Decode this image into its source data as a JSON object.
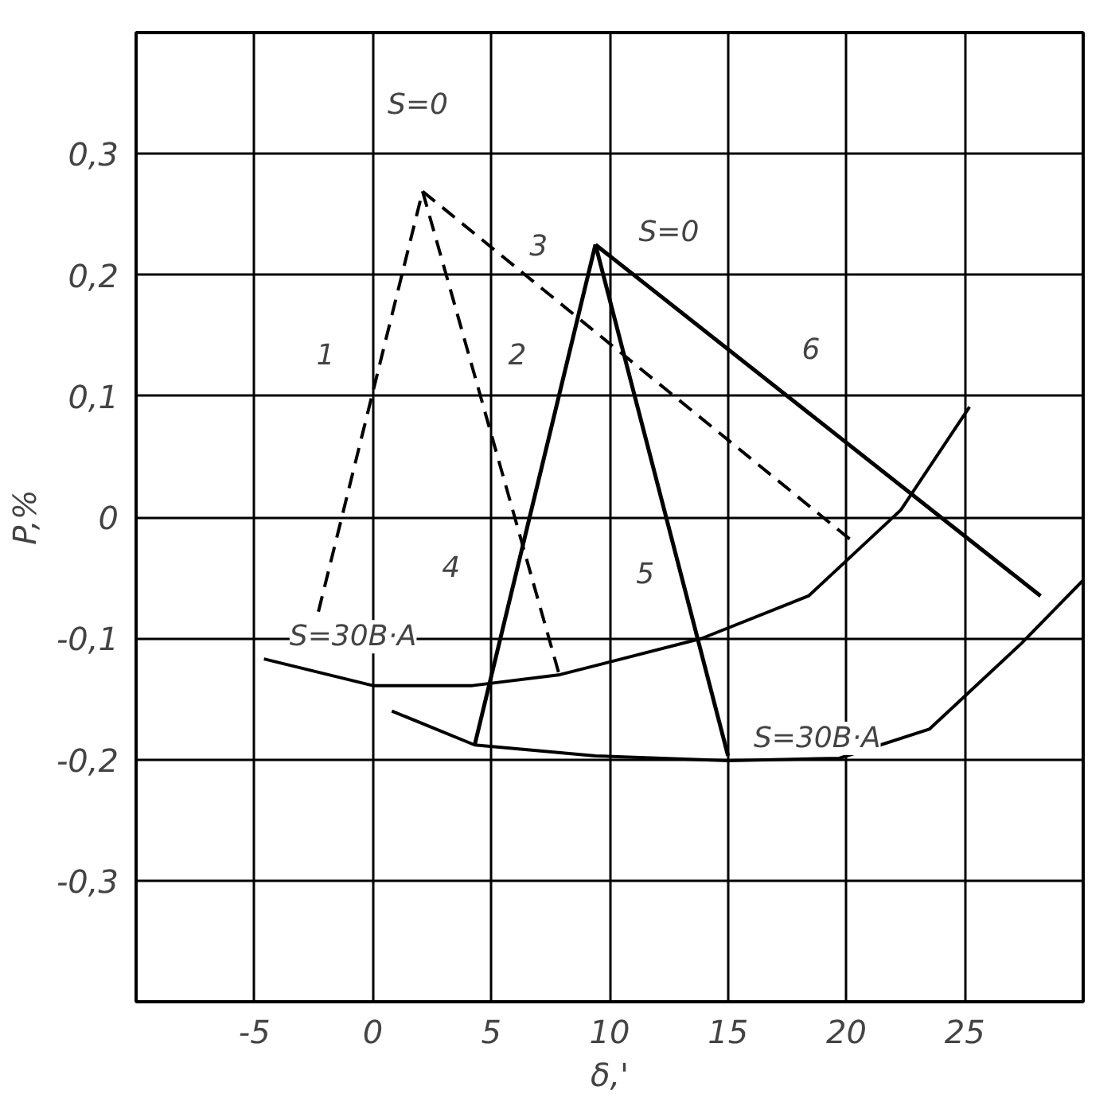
{
  "chart_data": {
    "type": "line",
    "xlabel": "δ,'",
    "ylabel": "P,%",
    "xlim": [
      -10,
      30
    ],
    "ylim": [
      -0.4,
      0.4
    ],
    "xticks": [
      {
        "value": -10,
        "label": null
      },
      -5,
      0,
      5,
      10,
      15,
      20,
      25,
      {
        "value": 30,
        "label": null
      }
    ],
    "yticks": [
      {
        "value": -0.4,
        "label": null
      },
      {
        "value": -0.3,
        "label": "-0,3"
      },
      {
        "value": -0.2,
        "label": "-0,2"
      },
      {
        "value": -0.1,
        "label": "-0,1"
      },
      0,
      {
        "value": 0.1,
        "label": "0,1"
      },
      {
        "value": 0.2,
        "label": "0,2"
      },
      {
        "value": 0.3,
        "label": "0,3"
      },
      {
        "value": 0.4,
        "label": null
      }
    ],
    "grid": true,
    "marker": "none",
    "series": [
      {
        "color": "#000000",
        "line_style": "dashed",
        "x": [
          -2.3,
          2.1
        ],
        "values": [
          -0.078,
          0.269
        ]
      },
      {
        "color": "#000000",
        "line_style": "dashed",
        "x": [
          2.1,
          7.9
        ],
        "values": [
          0.269,
          -0.132
        ]
      },
      {
        "color": "#000000",
        "line_style": "dashed",
        "x": [
          2.1,
          20.2
        ],
        "values": [
          0.269,
          -0.019
        ]
      },
      {
        "color": "#000000",
        "line_style": "solid",
        "x": [
          4.3,
          9.4
        ],
        "values": [
          -0.188,
          0.225
        ]
      },
      {
        "color": "#000000",
        "line_style": "solid",
        "x": [
          9.4,
          15.0
        ],
        "values": [
          0.225,
          -0.197
        ]
      },
      {
        "color": "#000000",
        "line_style": "solid",
        "x": [
          9.4,
          28.2
        ],
        "values": [
          0.225,
          -0.065
        ]
      },
      {
        "color": "#000000",
        "line_style": "solid",
        "x": [
          -4.6,
          0,
          4.2,
          7.9,
          13.9,
          18.4,
          22.3,
          25.2
        ],
        "values": [
          -0.117,
          -0.139,
          -0.139,
          -0.13,
          -0.1,
          -0.065,
          0.006,
          0.091
        ]
      },
      {
        "color": "#000000",
        "line_style": "solid",
        "x": [
          0.8,
          4.3,
          9.4,
          15.0,
          19.7,
          23.5,
          27.4,
          30
        ],
        "values": [
          -0.16,
          -0.188,
          -0.197,
          -0.201,
          -0.199,
          -0.175,
          -0.104,
          -0.052
        ]
      }
    ],
    "annotations": [
      {
        "text": "S=0",
        "x": 1.9,
        "y": 0.34
      },
      {
        "text": "S=0",
        "x": 12.5,
        "y": 0.235
      },
      {
        "text": "S=30B·A",
        "x": -4.6,
        "y": -0.117
      },
      {
        "text": "S=30B·A",
        "x": 15.0,
        "y": -0.201
      },
      {
        "text": "1",
        "x": -2.0,
        "y": 0.135
      },
      {
        "text": "2",
        "x": 6.1,
        "y": 0.135
      },
      {
        "text": "3",
        "x": 7.0,
        "y": 0.225
      },
      {
        "text": "4",
        "x": 3.3,
        "y": -0.04
      },
      {
        "text": "5",
        "x": 11.5,
        "y": -0.045
      },
      {
        "text": "6",
        "x": 18.5,
        "y": 0.14
      }
    ]
  }
}
